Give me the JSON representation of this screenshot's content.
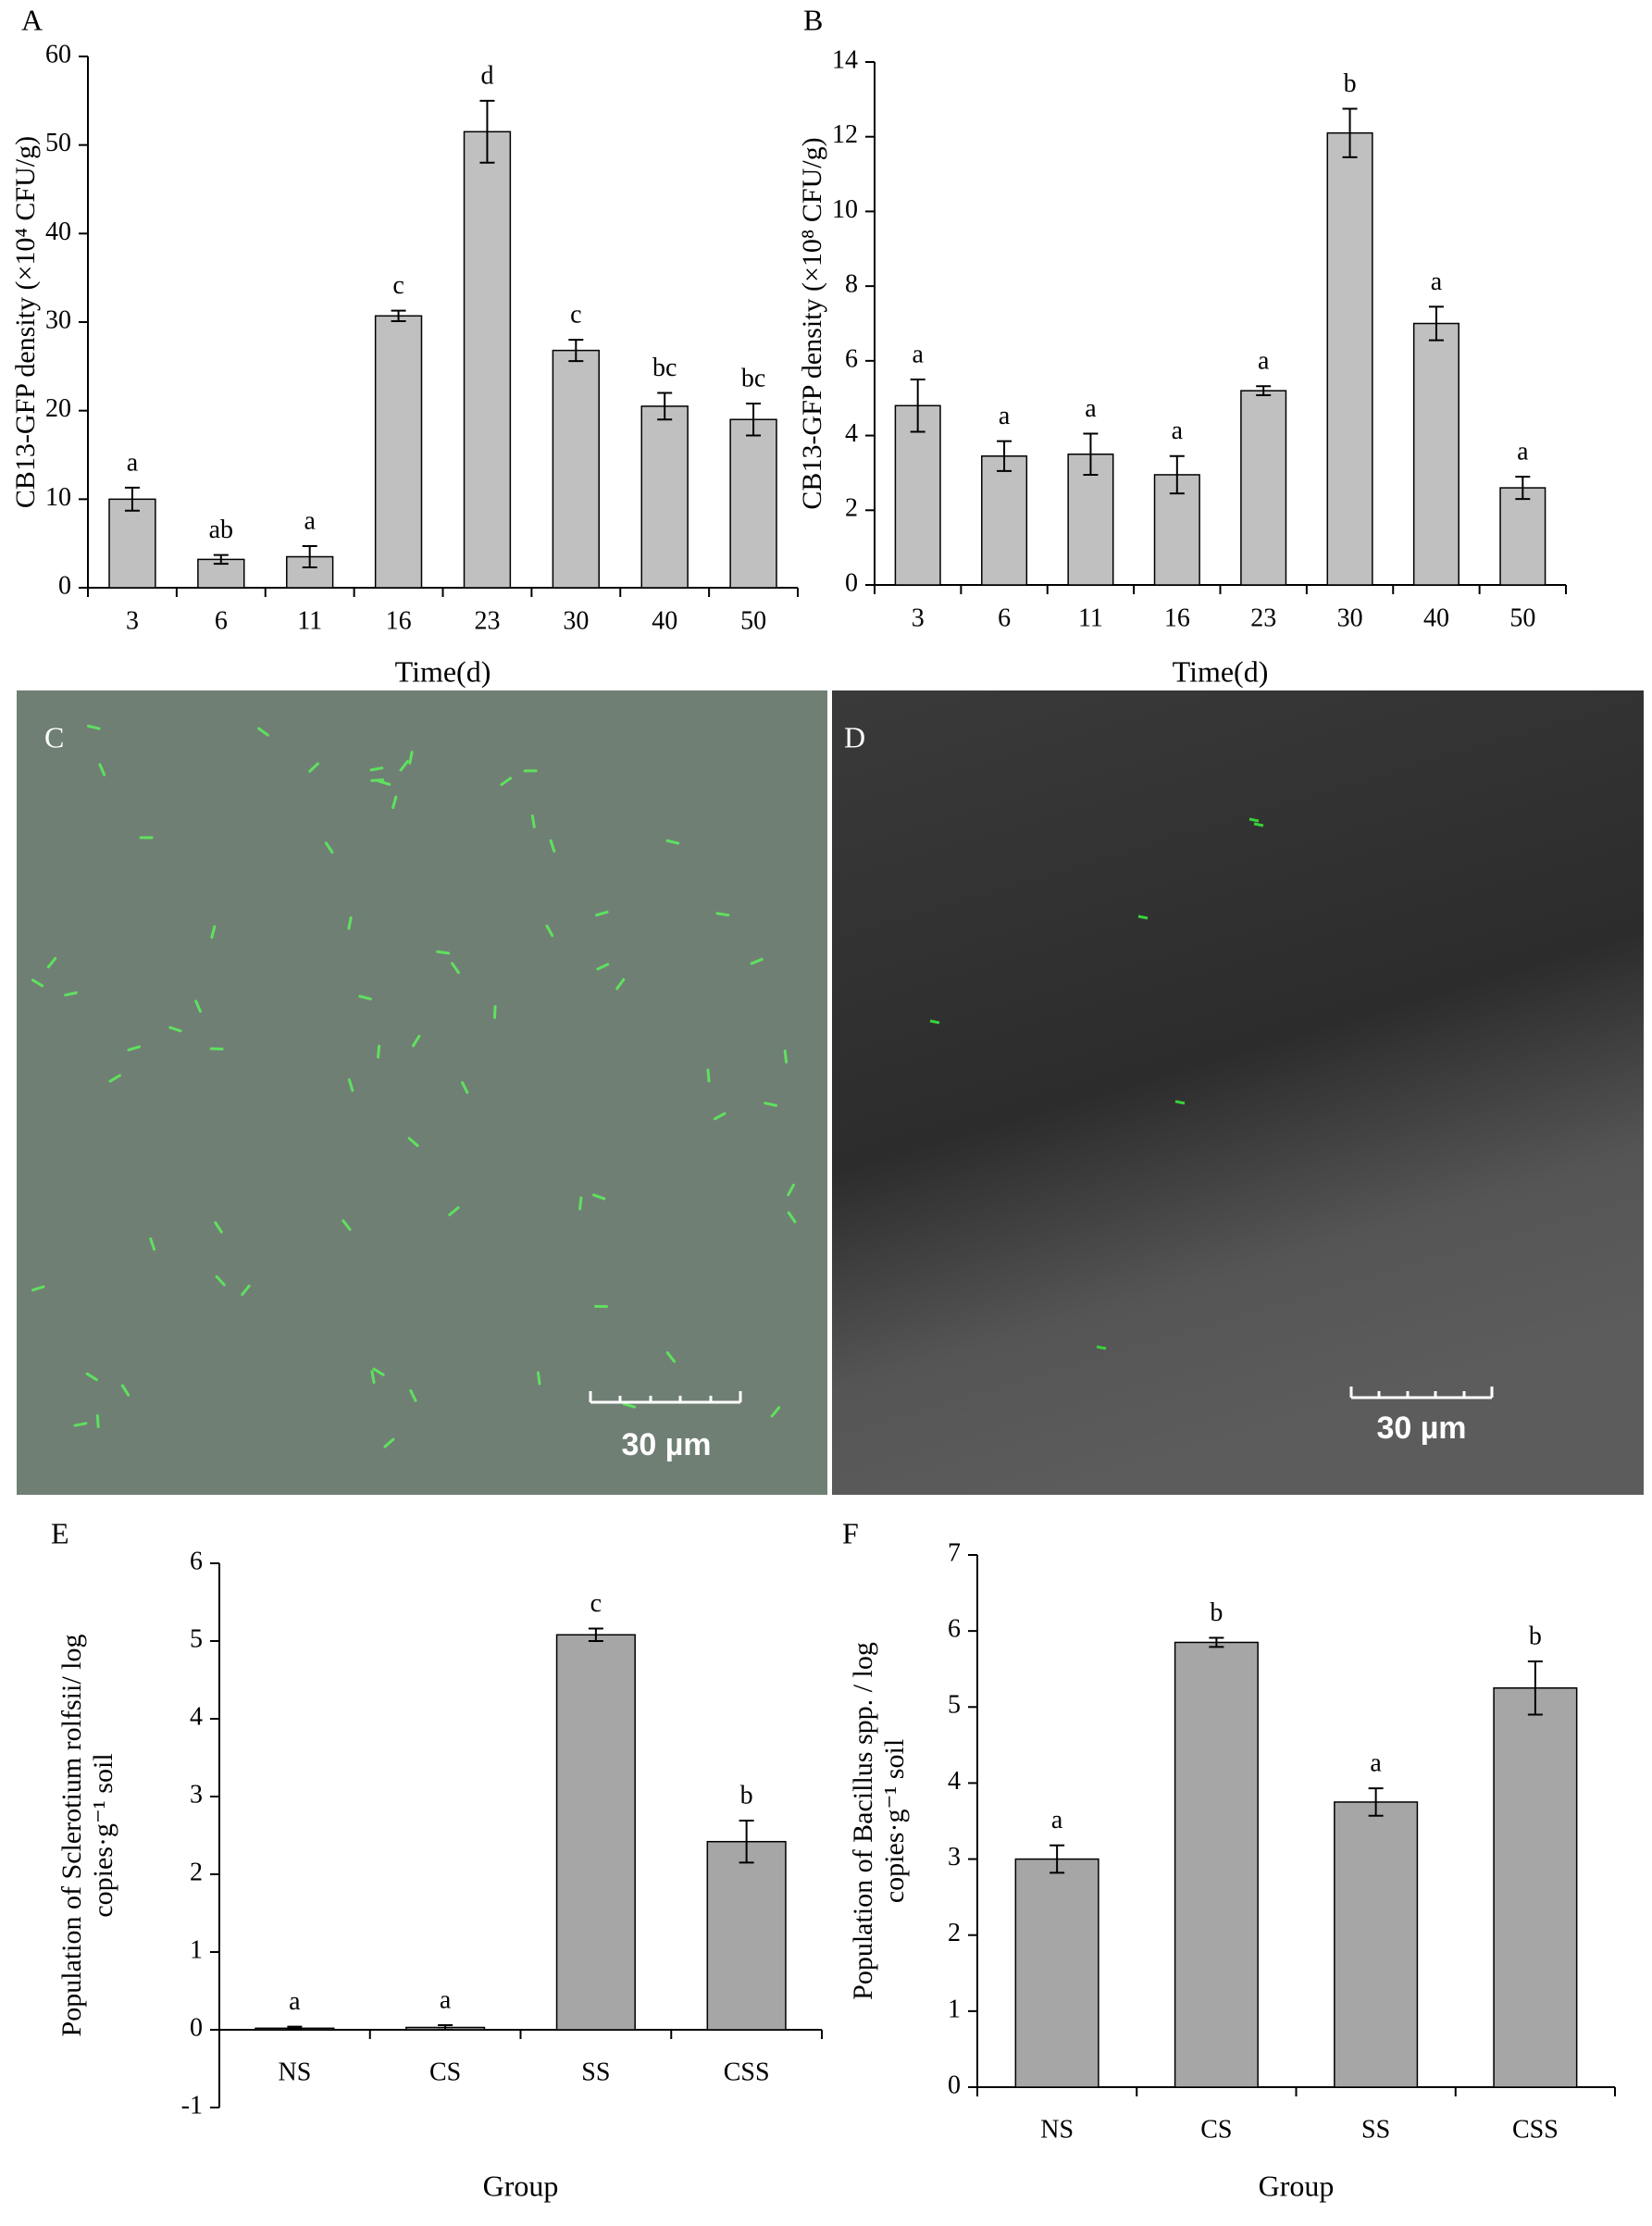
{
  "chart_data": [
    {
      "type": "bar",
      "label": "A",
      "categories": [
        "3",
        "6",
        "11",
        "16",
        "23",
        "30",
        "40",
        "50"
      ],
      "values": [
        10,
        3.2,
        3.5,
        30.7,
        51.5,
        26.8,
        20.5,
        19
      ],
      "errors": [
        1.3,
        0.5,
        1.2,
        0.6,
        3.5,
        1.2,
        1.5,
        1.8
      ],
      "letters": [
        "a",
        "ab",
        "a",
        "c",
        "d",
        "c",
        "bc",
        "bc"
      ],
      "color": "#c0c0c0",
      "ylabel": [
        "CB13-GFP density (×10⁴ CFU/g)"
      ],
      "xlabel": "Time(d)",
      "ylim": [
        0,
        60
      ],
      "yticks": [
        0,
        10,
        20,
        30,
        40,
        50,
        60
      ]
    },
    {
      "type": "bar",
      "label": "B",
      "categories": [
        "3",
        "6",
        "11",
        "16",
        "23",
        "30",
        "40",
        "50"
      ],
      "values": [
        4.8,
        3.45,
        3.5,
        2.95,
        5.2,
        12.1,
        7.0,
        2.6
      ],
      "errors": [
        0.7,
        0.4,
        0.55,
        0.5,
        0.12,
        0.65,
        0.45,
        0.3
      ],
      "letters": [
        "a",
        "a",
        "a",
        "a",
        "a",
        "b",
        "a",
        "a"
      ],
      "color": "#c0c0c0",
      "ylabel": [
        "CB13-GFP density (×10⁸ CFU/g)"
      ],
      "xlabel": "Time(d)",
      "ylim": [
        0,
        14
      ],
      "yticks": [
        0,
        2,
        4,
        6,
        8,
        10,
        12,
        14
      ]
    },
    {
      "type": "bar",
      "label": "E",
      "categories": [
        "NS",
        "CS",
        "SS",
        "CSS"
      ],
      "values": [
        0.02,
        0.03,
        5.08,
        2.42
      ],
      "errors": [
        0.02,
        0.03,
        0.08,
        0.27
      ],
      "letters": [
        "a",
        "a",
        "c",
        "b"
      ],
      "color": "#a6a6a6",
      "ylabel": [
        "Population of Sclerotium rolfsii/ log",
        "copies·g⁻¹ soil"
      ],
      "xlabel": "Group",
      "ylim": [
        -1,
        6
      ],
      "yticks": [
        -1,
        0,
        1,
        2,
        3,
        4,
        5,
        6
      ]
    },
    {
      "type": "bar",
      "label": "F",
      "categories": [
        "NS",
        "CS",
        "SS",
        "CSS"
      ],
      "values": [
        3.0,
        5.85,
        3.75,
        5.25
      ],
      "errors": [
        0.18,
        0.06,
        0.18,
        0.35
      ],
      "letters": [
        "a",
        "b",
        "a",
        "b"
      ],
      "color": "#a6a6a6",
      "ylabel": [
        "Population of Bacillus spp. / log",
        "copies·g⁻¹ soil"
      ],
      "xlabel": "Group",
      "ylim": [
        0,
        7
      ],
      "yticks": [
        0,
        1,
        2,
        3,
        4,
        5,
        6,
        7
      ]
    }
  ],
  "images": [
    {
      "label": "C",
      "scale_bar": "30 µm"
    },
    {
      "label": "D",
      "scale_bar": "30 µm"
    }
  ]
}
